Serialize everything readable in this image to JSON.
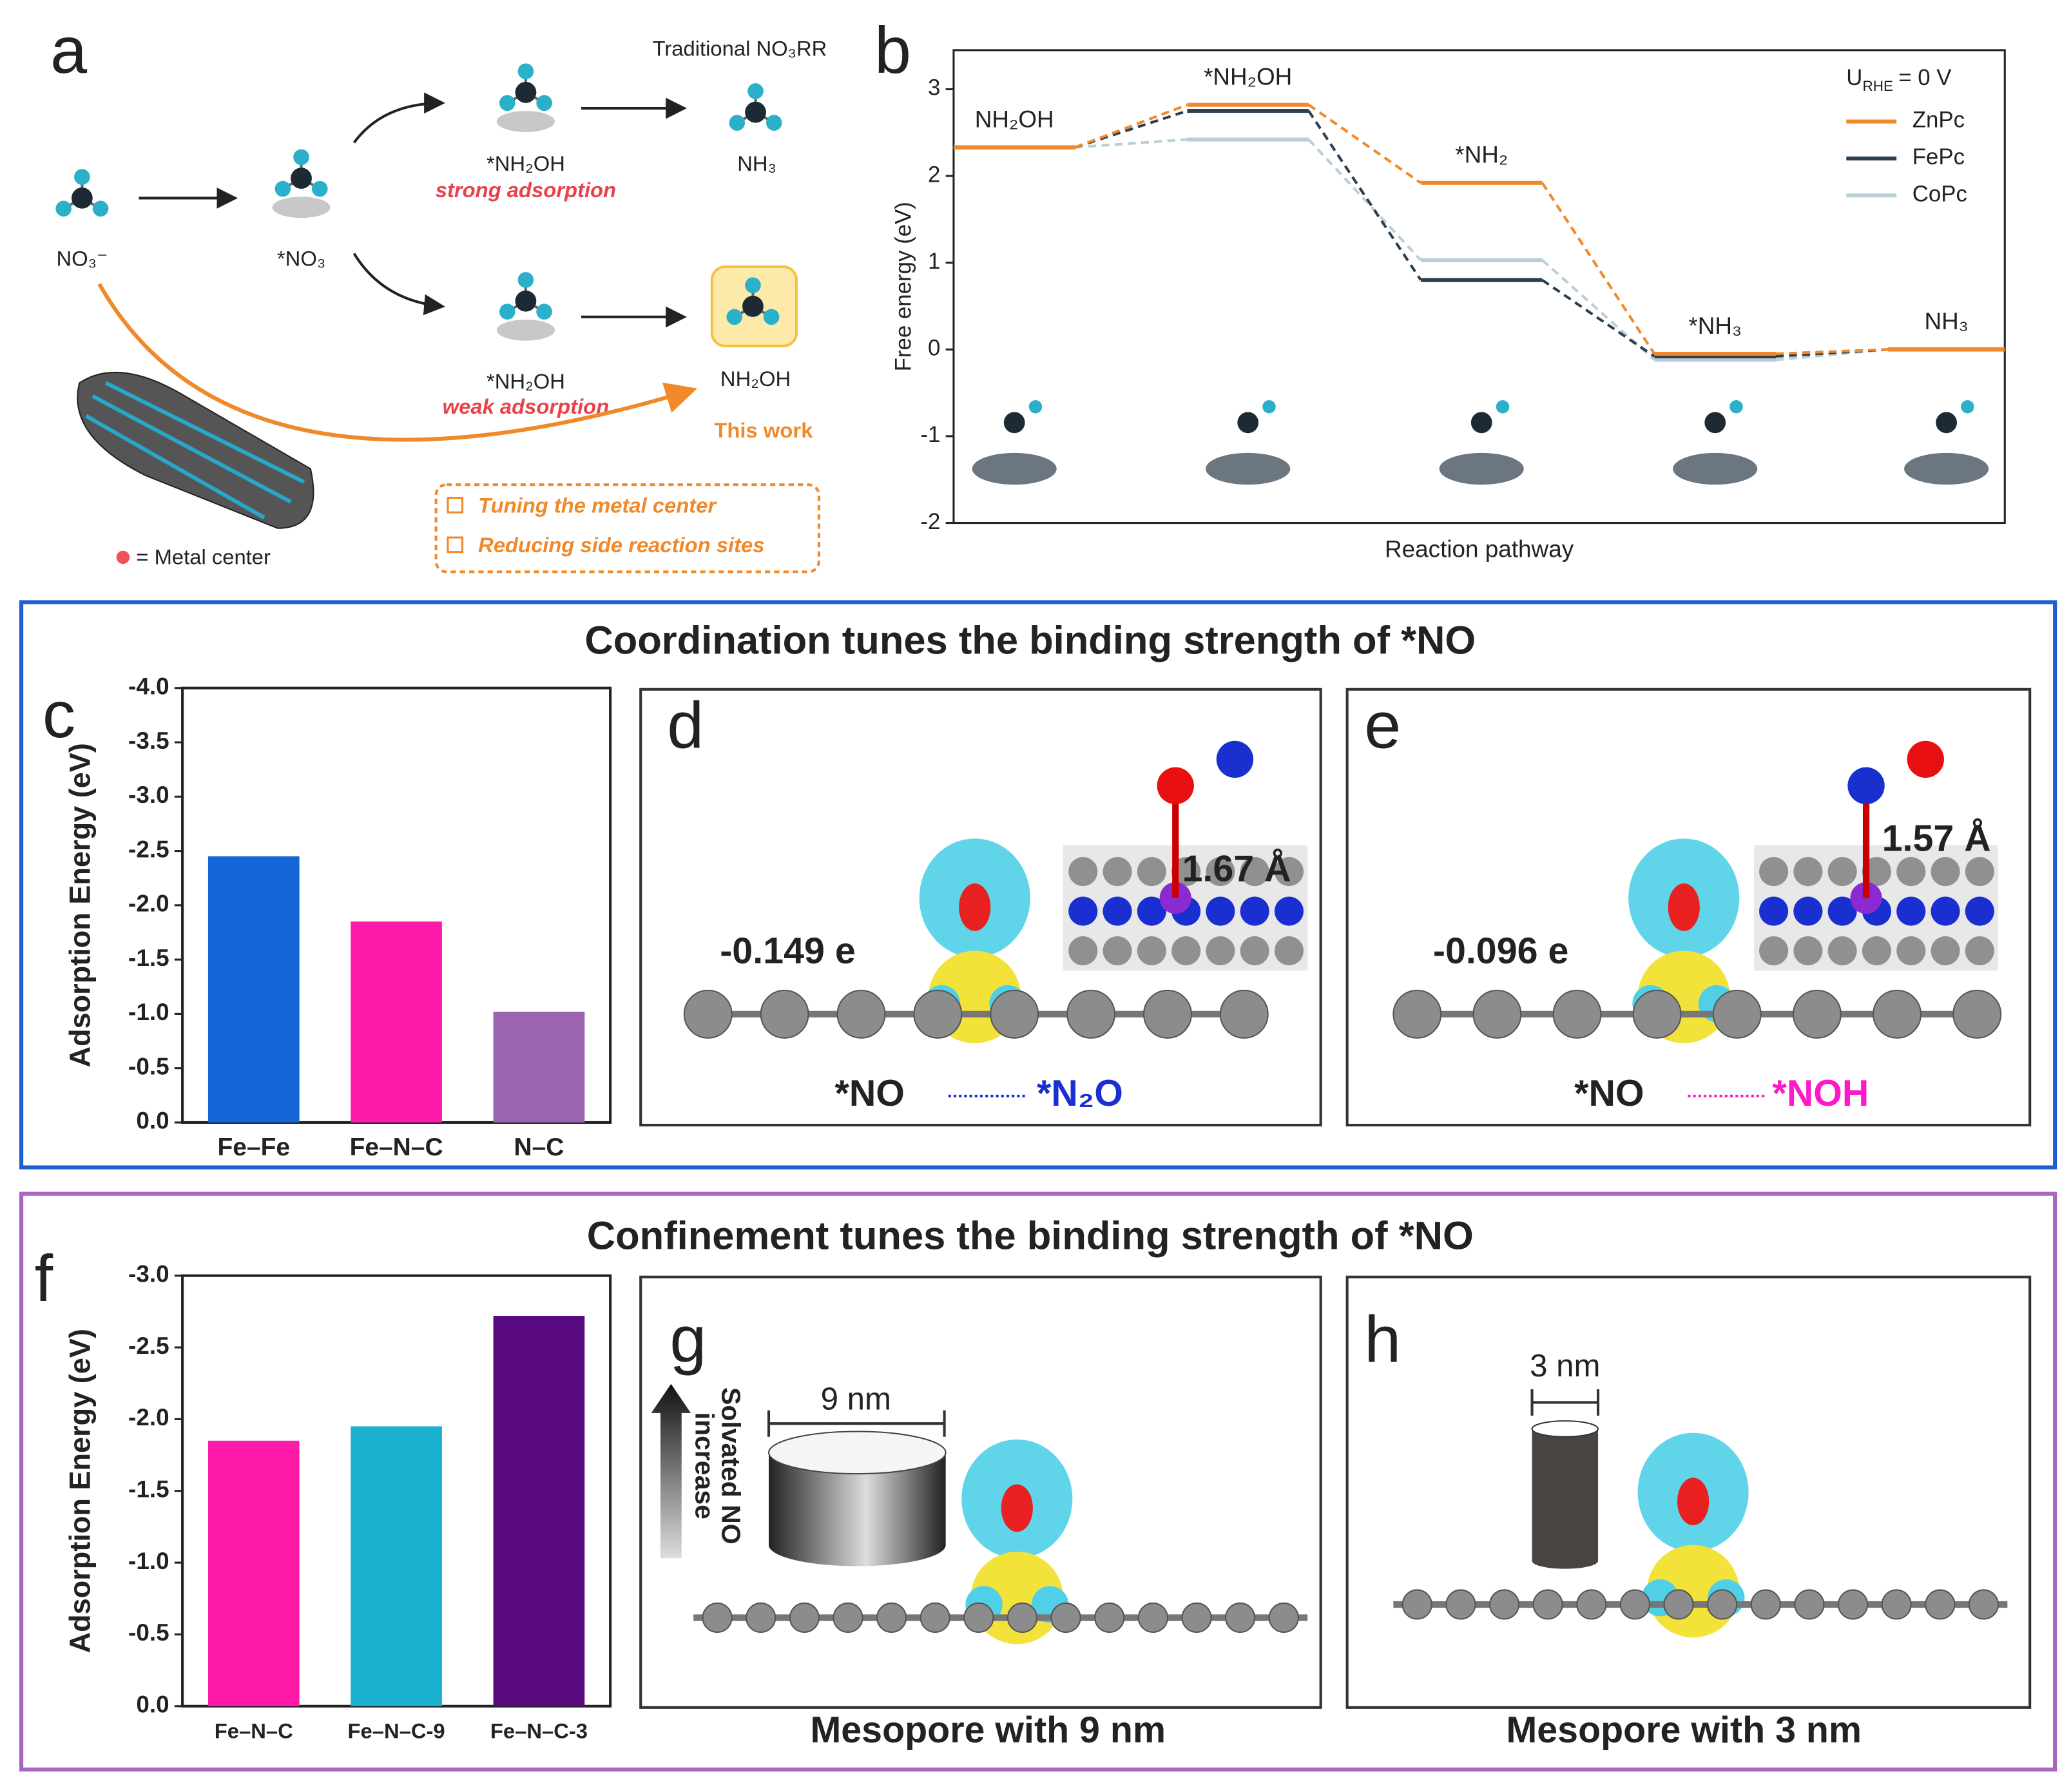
{
  "figure": {
    "panel_labels": [
      "a",
      "b",
      "c",
      "d",
      "e",
      "f",
      "g",
      "h"
    ],
    "section_titles": [
      "Coordination tunes the binding strength of *NO",
      "Confinement tunes the binding strength of *NO"
    ]
  },
  "panel_a": {
    "top_label": "Traditional NO₃RR",
    "nitrate": "NO₃⁻",
    "adsorbed_nitrate": "*NO₃",
    "strong_intermediate": "*NH₂OH",
    "strong_note": "strong adsorption",
    "strong_product": "NH₃",
    "weak_intermediate": "*NH₂OH",
    "weak_note": "weak adsorption",
    "weak_product": "NH₂OH",
    "this_work": "This work",
    "metal_legend": "= Metal center",
    "strategies": [
      "Tuning the metal center",
      "Reducing side reaction sites"
    ]
  },
  "panel_d": {
    "charge": "-0.149 e",
    "bond": "1.67 Å",
    "from": "*NO",
    "to": "*N₂O"
  },
  "panel_e": {
    "charge": "-0.096 e",
    "bond": "1.57 Å",
    "from": "*NO",
    "to": "*NOH"
  },
  "panel_g": {
    "size": "9 nm",
    "arrow_label": [
      "Solvated NO",
      "increase"
    ],
    "caption": "Mesopore with 9 nm"
  },
  "panel_h": {
    "size": "3 nm",
    "caption": "Mesopore with 3 nm"
  },
  "chart_data": [
    {
      "type": "line",
      "categories": [
        "NH₂OH",
        "*NH₂OH",
        "*NH₂",
        "*NH₃",
        "NH₃"
      ],
      "series": [
        {
          "name": "ZnPc",
          "color": "#f0892a",
          "values": [
            2.33,
            2.82,
            1.92,
            -0.05,
            0
          ]
        },
        {
          "name": "FePc",
          "color": "#2c3e50",
          "values": [
            2.33,
            2.75,
            0.8,
            -0.08,
            0
          ]
        },
        {
          "name": "CoPc",
          "color": "#b9cfd6",
          "values": [
            2.33,
            2.42,
            1.03,
            -0.12,
            0
          ]
        }
      ],
      "ylim": [
        -2,
        3.45
      ],
      "yticks": [
        -2,
        -1,
        0,
        1,
        2,
        3
      ],
      "ylabel": "Free energy (eV)",
      "xlabel": "Reaction pathway",
      "legend_title": [
        "U",
        "RHE",
        "= 0 V"
      ],
      "legend": "upper right"
    },
    {
      "type": "bar",
      "categories": [
        "Fe–Fe",
        "Fe–N–C",
        "N–C"
      ],
      "values": [
        -2.45,
        -1.85,
        -1.02
      ],
      "colors": [
        "#1565d8",
        "#ff1aaa",
        "#9a64b0"
      ],
      "ylim": [
        0,
        -4
      ],
      "yticks": [
        {
          "value": 0,
          "label": "0.0"
        },
        -0.5,
        {
          "value": -1,
          "label": "-1.0"
        },
        -1.5,
        {
          "value": -2,
          "label": "-2.0"
        },
        -2.5,
        {
          "value": -3,
          "label": "-3.0"
        },
        -3.5,
        {
          "value": -4,
          "label": "-4.0"
        }
      ],
      "ylabel": "Adsorption Energy (eV)"
    },
    {
      "type": "bar",
      "categories": [
        "Fe–N–C",
        "Fe–N–C-9",
        "Fe–N–C-3"
      ],
      "values": [
        -1.85,
        -1.95,
        -2.72
      ],
      "colors": [
        "#ff1aaa",
        "#1ab0d0",
        "#5a0a80"
      ],
      "ylim": [
        0,
        -3
      ],
      "yticks": [
        {
          "value": 0,
          "label": "0.0"
        },
        -0.5,
        {
          "value": -1,
          "label": "-1.0"
        },
        -1.5,
        {
          "value": -2,
          "label": "-2.0"
        },
        -2.5,
        {
          "value": -3,
          "label": "-3.0"
        }
      ],
      "ylabel": "Adsorption Energy (eV)"
    }
  ]
}
